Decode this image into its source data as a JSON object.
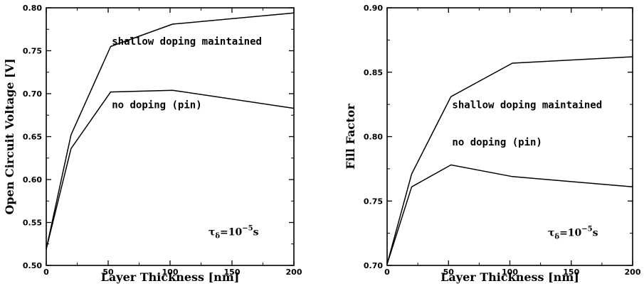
{
  "chart_data": [
    {
      "type": "line",
      "xlabel": "Layer Thickness [nm]",
      "ylabel": "Open Circuit Voltage [V]",
      "xlim": [
        0,
        200
      ],
      "ylim": [
        0.5,
        0.8
      ],
      "xticks": [
        "0",
        "50",
        "100",
        "150",
        "200"
      ],
      "yticks": [
        "0.50",
        "0.55",
        "0.60",
        "0.65",
        "0.70",
        "0.75",
        "0.80"
      ],
      "xtick_values": [
        0,
        50,
        100,
        150,
        200
      ],
      "ytick_values": [
        0.5,
        0.55,
        0.6,
        0.65,
        0.7,
        0.75,
        0.8
      ],
      "series": [
        {
          "x": [
            0,
            20,
            52,
            102,
            200
          ],
          "values": [
            0.519,
            0.652,
            0.755,
            0.781,
            0.794
          ]
        },
        {
          "x": [
            0,
            20,
            52,
            102,
            200
          ],
          "values": [
            0.519,
            0.636,
            0.702,
            0.704,
            0.683
          ]
        }
      ],
      "annotations": [
        {
          "text": "shallow doping maintained",
          "x": 53,
          "y": 0.757
        },
        {
          "text": "no doping (pin)",
          "x": 53,
          "y": 0.683
        }
      ],
      "tau": {
        "symbol": "τ",
        "sub": "δ",
        "text": "=10",
        "exp": "−5",
        "unit": "s",
        "x": 131,
        "y": 0.535
      }
    },
    {
      "type": "line",
      "xlabel": "Layer Thickness [nm]",
      "ylabel": "Fill Factor",
      "xlim": [
        0,
        200
      ],
      "ylim": [
        0.7,
        0.9
      ],
      "xticks": [
        "0",
        "50",
        "100",
        "150",
        "200"
      ],
      "yticks": [
        "0.70",
        "0.75",
        "0.80",
        "0.85",
        "0.90"
      ],
      "xtick_values": [
        0,
        50,
        100,
        150,
        200
      ],
      "ytick_values": [
        0.7,
        0.75,
        0.8,
        0.85,
        0.9
      ],
      "series": [
        {
          "x": [
            0,
            20,
            52,
            102,
            200
          ],
          "values": [
            0.701,
            0.771,
            0.831,
            0.857,
            0.862
          ]
        },
        {
          "x": [
            0,
            20,
            52,
            102,
            200
          ],
          "values": [
            0.701,
            0.761,
            0.778,
            0.769,
            0.761
          ]
        }
      ],
      "annotations": [
        {
          "text": "shallow doping maintained",
          "x": 53,
          "y": 0.822
        },
        {
          "text": "no doping (pin)",
          "x": 53,
          "y": 0.793
        }
      ],
      "tau": {
        "symbol": "τ",
        "sub": "δ",
        "text": "=10",
        "exp": "−5",
        "unit": "s",
        "x": 131,
        "y": 0.723
      }
    }
  ]
}
